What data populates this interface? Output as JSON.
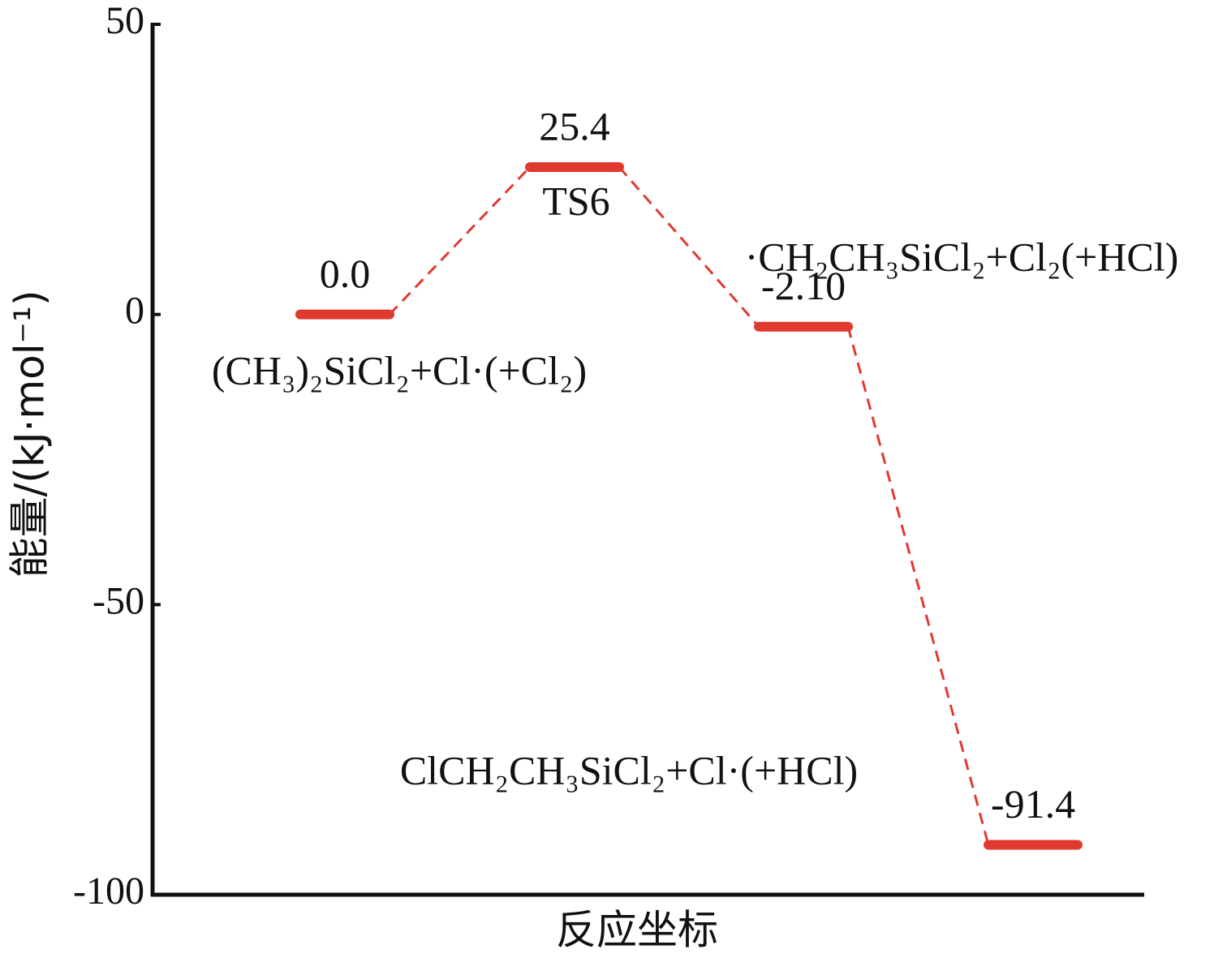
{
  "chart_data": {
    "type": "energy_levels",
    "ylabel": "能量/(kJ·mol⁻¹)",
    "xlabel": "反应坐标",
    "categories": [
      "(CH₃)₂SiCl₂+Cl·(+Cl₂)",
      "TS6",
      "·CH₂CH₃SiCl₂+Cl₂(+HCl)",
      "ClCH₂CH₃SiCl₂+Cl·(+HCl)"
    ],
    "values": [
      0.0,
      25.4,
      -2.1,
      -91.4
    ],
    "value_labels": [
      "0.0",
      "25.4",
      "-2.10",
      "-91.4"
    ],
    "color": "#e03a30",
    "ylim": [
      -100,
      50
    ],
    "yticks": [
      -100,
      -50,
      0,
      50
    ]
  }
}
